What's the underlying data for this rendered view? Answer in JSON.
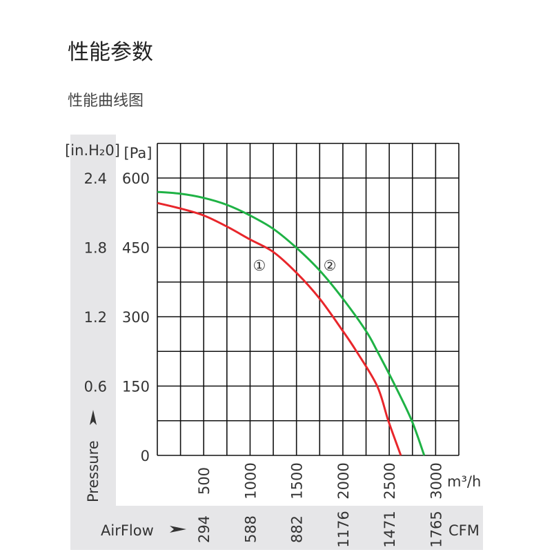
{
  "page": {
    "title": "性能参数",
    "subtitle": "性能曲线图"
  },
  "chart_data": {
    "type": "line",
    "title": "",
    "xlabel": "AirFlow",
    "xunit": "m³/h",
    "x2unit": "CFM",
    "ylabel": "Pressure",
    "yunit": "[Pa]",
    "y2unit": "[in.H₂0]",
    "xlim": [
      0,
      3250
    ],
    "ylim": [
      0,
      675
    ],
    "grid": true,
    "x_ticks": [
      500,
      1000,
      1500,
      2000,
      2500,
      3000
    ],
    "x_tick_labels": [
      "500",
      "1000",
      "1500",
      "2000",
      "2500",
      "3000"
    ],
    "x2_tick_labels": [
      "294",
      "588",
      "882",
      "1176",
      "1471",
      "1765"
    ],
    "y_ticks": [
      0,
      150,
      300,
      450,
      600
    ],
    "y_tick_labels": [
      "0",
      "150",
      "300",
      "450",
      "600"
    ],
    "y2_tick_labels": [
      "",
      "0.6",
      "1.2",
      "1.8",
      "2.4"
    ],
    "series": [
      {
        "name": "①",
        "color": "#e8262b",
        "label_at": [
          1100,
          415
        ],
        "x": [
          0,
          250,
          500,
          750,
          1000,
          1250,
          1500,
          1750,
          2000,
          2147,
          2370,
          2490,
          2625
        ],
        "y": [
          546,
          534,
          519,
          495,
          467,
          440,
          395,
          339,
          269,
          225,
          150,
          75,
          0
        ]
      },
      {
        "name": "②",
        "color": "#1fb245",
        "label_at": [
          1860,
          415
        ],
        "x": [
          0,
          250,
          500,
          750,
          1000,
          1250,
          1500,
          1750,
          2000,
          2250,
          2372,
          2565,
          2743,
          2877
        ],
        "y": [
          570,
          566,
          557,
          542,
          519,
          490,
          449,
          400,
          339,
          269,
          225,
          150,
          75,
          0
        ]
      }
    ]
  }
}
